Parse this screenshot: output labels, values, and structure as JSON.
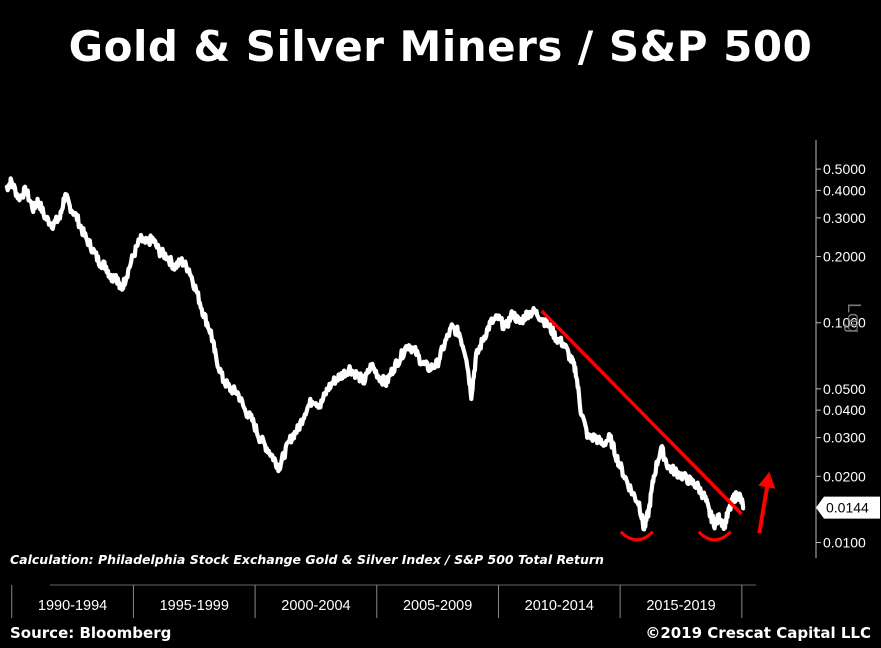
{
  "chart_data": {
    "type": "line",
    "title": "Gold & Silver Miners / S&P 500",
    "y_scale_label": "Log",
    "yscale": "log",
    "ylim": [
      0.0085,
      0.55
    ],
    "y_ticks": [
      {
        "value": 0.5,
        "label": "0.5000"
      },
      {
        "value": 0.4,
        "label": "0.4000"
      },
      {
        "value": 0.3,
        "label": "0.3000"
      },
      {
        "value": 0.2,
        "label": "0.2000"
      },
      {
        "value": 0.1,
        "label": "0.1000"
      },
      {
        "value": 0.05,
        "label": "0.0500"
      },
      {
        "value": 0.04,
        "label": "0.0400"
      },
      {
        "value": 0.03,
        "label": "0.0300"
      },
      {
        "value": 0.02,
        "label": "0.0200"
      },
      {
        "value": 0.01,
        "label": "0.0100"
      }
    ],
    "last_value": {
      "value": 0.0144,
      "label": "0.0144"
    },
    "x_categories": [
      "1990-1994",
      "1995-1999",
      "2000-2004",
      "2005-2009",
      "2010-2014",
      "2015-2019"
    ],
    "xlim": [
      1989.6,
      2020.5
    ],
    "series": [
      {
        "color": "#ffffff",
        "points": [
          [
            1989.7,
            0.41
          ],
          [
            1989.9,
            0.44
          ],
          [
            1990.2,
            0.37
          ],
          [
            1990.5,
            0.4
          ],
          [
            1990.8,
            0.33
          ],
          [
            1991.0,
            0.36
          ],
          [
            1991.3,
            0.3
          ],
          [
            1991.6,
            0.28
          ],
          [
            1991.9,
            0.3
          ],
          [
            1992.1,
            0.38
          ],
          [
            1992.3,
            0.34
          ],
          [
            1992.6,
            0.3
          ],
          [
            1992.9,
            0.25
          ],
          [
            1993.2,
            0.22
          ],
          [
            1993.5,
            0.19
          ],
          [
            1993.8,
            0.18
          ],
          [
            1994.0,
            0.16
          ],
          [
            1994.2,
            0.165
          ],
          [
            1994.4,
            0.14
          ],
          [
            1994.6,
            0.16
          ],
          [
            1994.9,
            0.2
          ],
          [
            1995.2,
            0.24
          ],
          [
            1995.4,
            0.23
          ],
          [
            1995.7,
            0.24
          ],
          [
            1996.0,
            0.21
          ],
          [
            1996.3,
            0.2
          ],
          [
            1996.6,
            0.18
          ],
          [
            1996.9,
            0.19
          ],
          [
            1997.2,
            0.175
          ],
          [
            1997.5,
            0.14
          ],
          [
            1997.8,
            0.11
          ],
          [
            1998.1,
            0.09
          ],
          [
            1998.3,
            0.07
          ],
          [
            1998.6,
            0.055
          ],
          [
            1998.9,
            0.05
          ],
          [
            1999.2,
            0.048
          ],
          [
            1999.5,
            0.04
          ],
          [
            1999.8,
            0.036
          ],
          [
            2000.1,
            0.03
          ],
          [
            2000.4,
            0.027
          ],
          [
            2000.7,
            0.024
          ],
          [
            2000.9,
            0.022
          ],
          [
            2001.1,
            0.025
          ],
          [
            2001.4,
            0.03
          ],
          [
            2001.7,
            0.033
          ],
          [
            2002.0,
            0.04
          ],
          [
            2002.3,
            0.045
          ],
          [
            2002.6,
            0.042
          ],
          [
            2002.9,
            0.05
          ],
          [
            2003.2,
            0.055
          ],
          [
            2003.5,
            0.058
          ],
          [
            2003.8,
            0.062
          ],
          [
            2004.1,
            0.058
          ],
          [
            2004.4,
            0.054
          ],
          [
            2004.7,
            0.064
          ],
          [
            2005.0,
            0.057
          ],
          [
            2005.3,
            0.053
          ],
          [
            2005.6,
            0.062
          ],
          [
            2005.9,
            0.07
          ],
          [
            2006.2,
            0.08
          ],
          [
            2006.5,
            0.074
          ],
          [
            2006.8,
            0.065
          ],
          [
            2007.1,
            0.062
          ],
          [
            2007.4,
            0.065
          ],
          [
            2007.7,
            0.08
          ],
          [
            2008.0,
            0.095
          ],
          [
            2008.3,
            0.09
          ],
          [
            2008.6,
            0.07
          ],
          [
            2008.8,
            0.047
          ],
          [
            2009.0,
            0.07
          ],
          [
            2009.3,
            0.085
          ],
          [
            2009.6,
            0.1
          ],
          [
            2009.9,
            0.105
          ],
          [
            2010.2,
            0.095
          ],
          [
            2010.5,
            0.11
          ],
          [
            2010.8,
            0.1
          ],
          [
            2011.1,
            0.11
          ],
          [
            2011.4,
            0.112
          ],
          [
            2011.7,
            0.105
          ],
          [
            2012.0,
            0.096
          ],
          [
            2012.3,
            0.085
          ],
          [
            2012.6,
            0.08
          ],
          [
            2012.9,
            0.068
          ],
          [
            2013.1,
            0.06
          ],
          [
            2013.3,
            0.04
          ],
          [
            2013.6,
            0.03
          ],
          [
            2013.9,
            0.03
          ],
          [
            2014.2,
            0.028
          ],
          [
            2014.5,
            0.03
          ],
          [
            2014.8,
            0.024
          ],
          [
            2015.1,
            0.02
          ],
          [
            2015.4,
            0.017
          ],
          [
            2015.7,
            0.015
          ],
          [
            2015.9,
            0.0115
          ],
          [
            2016.1,
            0.014
          ],
          [
            2016.3,
            0.02
          ],
          [
            2016.6,
            0.027
          ],
          [
            2016.9,
            0.022
          ],
          [
            2017.2,
            0.021
          ],
          [
            2017.5,
            0.02
          ],
          [
            2017.8,
            0.019
          ],
          [
            2018.1,
            0.018
          ],
          [
            2018.4,
            0.016
          ],
          [
            2018.6,
            0.0135
          ],
          [
            2018.8,
            0.0122
          ],
          [
            2019.0,
            0.013
          ],
          [
            2019.2,
            0.012
          ],
          [
            2019.4,
            0.014
          ],
          [
            2019.6,
            0.016
          ],
          [
            2019.8,
            0.0165
          ],
          [
            2020.0,
            0.0144
          ]
        ]
      }
    ],
    "annotations": {
      "trendline": {
        "color": "#ff0000",
        "from": [
          2011.7,
          0.113
        ],
        "to": [
          2019.9,
          0.0135
        ]
      },
      "arcs": [
        {
          "x": 2015.6,
          "y": 0.0105
        },
        {
          "x": 2018.8,
          "y": 0.0105
        }
      ],
      "arrow": {
        "x": 2020.8,
        "y_from": 0.0125,
        "y_to": 0.0185
      }
    }
  },
  "calculation_note": "Calculation: Philadelphia Stock Exchange Gold & Silver Index / S&P 500 Total Return",
  "source": "Source: Bloomberg",
  "copyright": "©2019 Crescat Capital LLC"
}
